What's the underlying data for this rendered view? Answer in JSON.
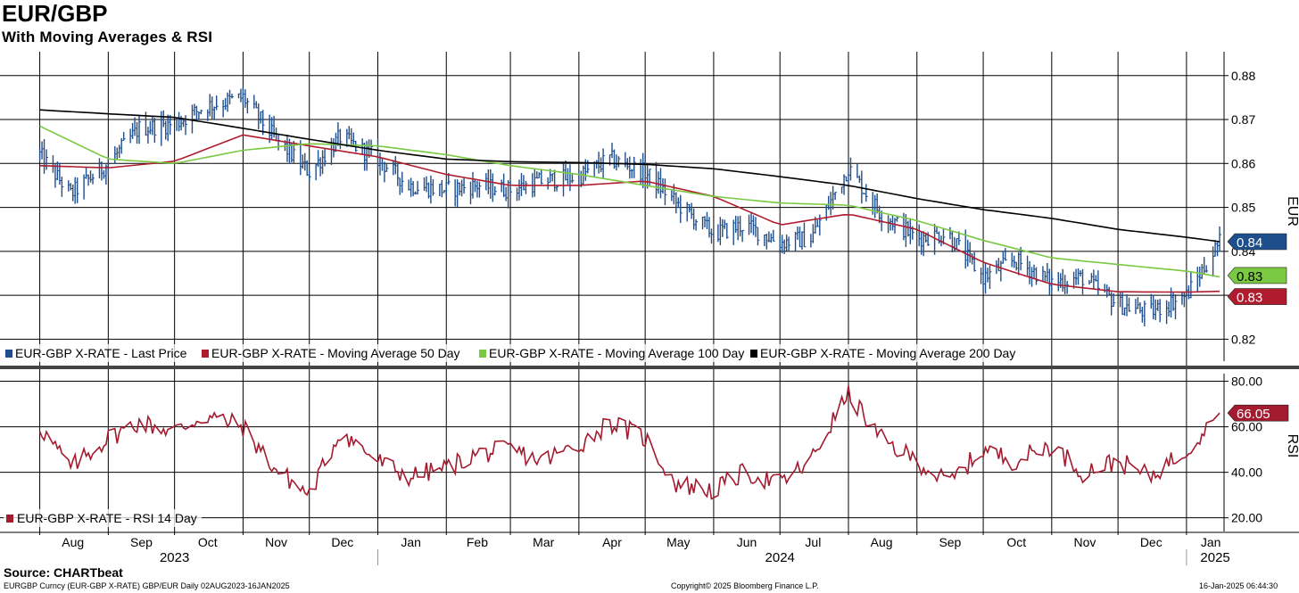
{
  "header": {
    "title": "EUR/GBP",
    "subtitle": "With Moving Averages & RSI"
  },
  "footer": {
    "source": "Source: CHARTbeat",
    "security": "EURGBP Curncy (EUR-GBP X-RATE) GBP/EUR  Daily 02AUG2023-16JAN2025",
    "copyright": "Copyright© 2025 Bloomberg Finance L.P.",
    "timestamp": "16-Jan-2025 06:44:30"
  },
  "colors": {
    "price": "#1f4e8c",
    "ma50": "#b01c2e",
    "ma100": "#7ac943",
    "ma200": "#000000",
    "rsi": "#a31b2e",
    "grid": "#000000"
  },
  "chart_data": [
    {
      "type": "line",
      "panel": "price",
      "ylabel": "EUR",
      "ylim": [
        0.815,
        0.883
      ],
      "yticks": [
        0.82,
        0.83,
        0.84,
        0.85,
        0.86,
        0.87,
        0.88
      ],
      "ytick_labels": [
        "0.82",
        "0.83",
        "0.84",
        "0.85",
        "0.86",
        "0.87",
        "0.88"
      ],
      "grid": true,
      "legend_position": "bottom-left",
      "series": [
        {
          "name": "EUR-GBP X-RATE - Last Price",
          "style": "hlc-bars",
          "x": [
            "2023-08-01",
            "2023-08-15",
            "2023-09-01",
            "2023-09-15",
            "2023-10-01",
            "2023-10-15",
            "2023-11-01",
            "2023-11-15",
            "2023-12-01",
            "2023-12-15",
            "2024-01-01",
            "2024-01-15",
            "2024-02-01",
            "2024-02-15",
            "2024-03-01",
            "2024-03-15",
            "2024-04-01",
            "2024-04-15",
            "2024-05-01",
            "2024-05-15",
            "2024-06-01",
            "2024-06-15",
            "2024-07-01",
            "2024-07-15",
            "2024-08-01",
            "2024-08-15",
            "2024-09-01",
            "2024-09-15",
            "2024-10-01",
            "2024-10-15",
            "2024-11-01",
            "2024-11-15",
            "2024-12-01",
            "2024-12-15",
            "2025-01-01",
            "2025-01-16"
          ],
          "values": [
            0.862,
            0.853,
            0.86,
            0.868,
            0.869,
            0.873,
            0.875,
            0.866,
            0.858,
            0.866,
            0.861,
            0.855,
            0.854,
            0.855,
            0.854,
            0.856,
            0.857,
            0.861,
            0.858,
            0.851,
            0.844,
            0.846,
            0.842,
            0.843,
            0.859,
            0.849,
            0.843,
            0.844,
            0.834,
            0.838,
            0.833,
            0.834,
            0.828,
            0.826,
            0.83,
            0.842
          ]
        },
        {
          "name": "EUR-GBP X-RATE - Moving Average 50 Day",
          "x": [
            "2023-08-01",
            "2023-09-01",
            "2023-10-01",
            "2023-11-01",
            "2023-12-01",
            "2024-01-01",
            "2024-02-01",
            "2024-03-01",
            "2024-04-01",
            "2024-05-01",
            "2024-06-01",
            "2024-07-01",
            "2024-08-01",
            "2024-09-01",
            "2024-10-01",
            "2024-11-01",
            "2024-12-01",
            "2025-01-01",
            "2025-01-16"
          ],
          "values": [
            0.8595,
            0.859,
            0.8605,
            0.8665,
            0.864,
            0.8615,
            0.8575,
            0.855,
            0.855,
            0.856,
            0.8525,
            0.846,
            0.8485,
            0.845,
            0.8375,
            0.8325,
            0.8308,
            0.8307,
            0.8309
          ]
        },
        {
          "name": "EUR-GBP X-RATE - Moving Average 100 Day",
          "x": [
            "2023-08-01",
            "2023-09-01",
            "2023-10-01",
            "2023-11-01",
            "2023-12-01",
            "2024-01-01",
            "2024-02-01",
            "2024-03-01",
            "2024-04-01",
            "2024-05-01",
            "2024-06-01",
            "2024-07-01",
            "2024-08-01",
            "2024-09-01",
            "2024-10-01",
            "2024-11-01",
            "2024-12-01",
            "2025-01-01",
            "2025-01-16"
          ],
          "values": [
            0.8685,
            0.861,
            0.86,
            0.863,
            0.8645,
            0.864,
            0.862,
            0.8595,
            0.8575,
            0.855,
            0.8525,
            0.851,
            0.8505,
            0.847,
            0.8425,
            0.8385,
            0.837,
            0.8355,
            0.8342
          ]
        },
        {
          "name": "EUR-GBP X-RATE - Moving Average 200 Day",
          "x": [
            "2023-08-01",
            "2023-09-01",
            "2023-10-01",
            "2023-11-01",
            "2023-12-01",
            "2024-01-01",
            "2024-02-01",
            "2024-03-01",
            "2024-04-01",
            "2024-05-01",
            "2024-06-01",
            "2024-07-01",
            "2024-08-01",
            "2024-09-01",
            "2024-10-01",
            "2024-11-01",
            "2024-12-01",
            "2025-01-01",
            "2025-01-16"
          ],
          "values": [
            0.8722,
            0.8713,
            0.8705,
            0.868,
            0.8655,
            0.863,
            0.861,
            0.8604,
            0.8602,
            0.8598,
            0.8588,
            0.857,
            0.855,
            0.852,
            0.8495,
            0.8475,
            0.845,
            0.8432,
            0.8422
          ]
        }
      ],
      "last_value_tags": [
        {
          "label": "0.84",
          "value": 0.8422,
          "series": "price"
        },
        {
          "label": "0.83",
          "value": 0.8342,
          "series": "ma100"
        },
        {
          "label": "0.83",
          "value": 0.8309,
          "series": "ma50"
        }
      ]
    },
    {
      "type": "line",
      "panel": "rsi",
      "ylabel": "RSI",
      "ylim": [
        14,
        81
      ],
      "yticks": [
        20,
        40,
        60,
        80
      ],
      "ytick_labels": [
        "20.00",
        "40.00",
        "60.00",
        "80.00"
      ],
      "grid": true,
      "legend_position": "bottom-left",
      "series": [
        {
          "name": "EUR-GBP X-RATE - RSI 14 Day",
          "x": [
            "2023-08-01",
            "2023-08-15",
            "2023-09-01",
            "2023-09-15",
            "2023-10-01",
            "2023-10-15",
            "2023-11-01",
            "2023-11-15",
            "2023-12-01",
            "2023-12-15",
            "2024-01-01",
            "2024-01-15",
            "2024-02-01",
            "2024-02-15",
            "2024-03-01",
            "2024-03-15",
            "2024-04-01",
            "2024-04-15",
            "2024-05-01",
            "2024-05-15",
            "2024-06-01",
            "2024-06-15",
            "2024-07-01",
            "2024-07-15",
            "2024-08-01",
            "2024-08-15",
            "2024-09-01",
            "2024-09-15",
            "2024-10-01",
            "2024-10-15",
            "2024-11-01",
            "2024-11-15",
            "2024-12-01",
            "2024-12-15",
            "2025-01-01",
            "2025-01-16"
          ],
          "values": [
            60,
            42,
            55,
            62,
            58,
            65,
            60,
            42,
            30,
            58,
            45,
            38,
            42,
            48,
            50,
            45,
            52,
            62,
            55,
            35,
            32,
            40,
            35,
            45,
            75,
            55,
            45,
            35,
            50,
            45,
            52,
            40,
            45,
            38,
            50,
            66.05
          ]
        }
      ],
      "last_value_tags": [
        {
          "label": "66.05",
          "value": 66.05,
          "series": "rsi"
        }
      ]
    }
  ],
  "time_axis": {
    "months": [
      "Aug",
      "Sep",
      "Oct",
      "Nov",
      "Dec",
      "Jan",
      "Feb",
      "Mar",
      "Apr",
      "May",
      "Jun",
      "Jul",
      "Aug",
      "Sep",
      "Oct",
      "Nov",
      "Dec",
      "Jan"
    ],
    "years": [
      "2023",
      "2024",
      "2025"
    ]
  }
}
